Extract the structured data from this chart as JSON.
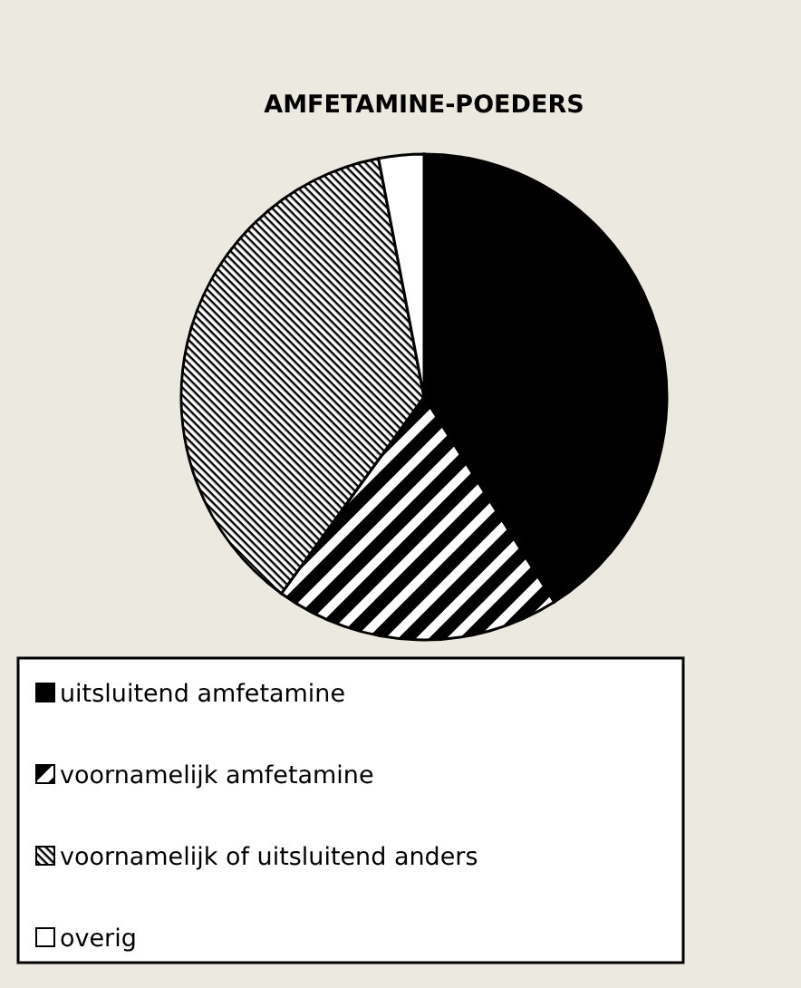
{
  "chart_data": {
    "type": "pie",
    "title": "AMFETAMINE-POEDERS",
    "categories": [
      "uitsluitend amfetamine",
      "voornamelijk amfetamine",
      "voornamelijk of uitsluitend anders",
      "overig"
    ],
    "values": [
      41,
      19,
      37,
      3
    ],
    "colors": [
      "#000000",
      "#000000",
      "#000000",
      "#ffffff"
    ],
    "legend": "bottom"
  }
}
